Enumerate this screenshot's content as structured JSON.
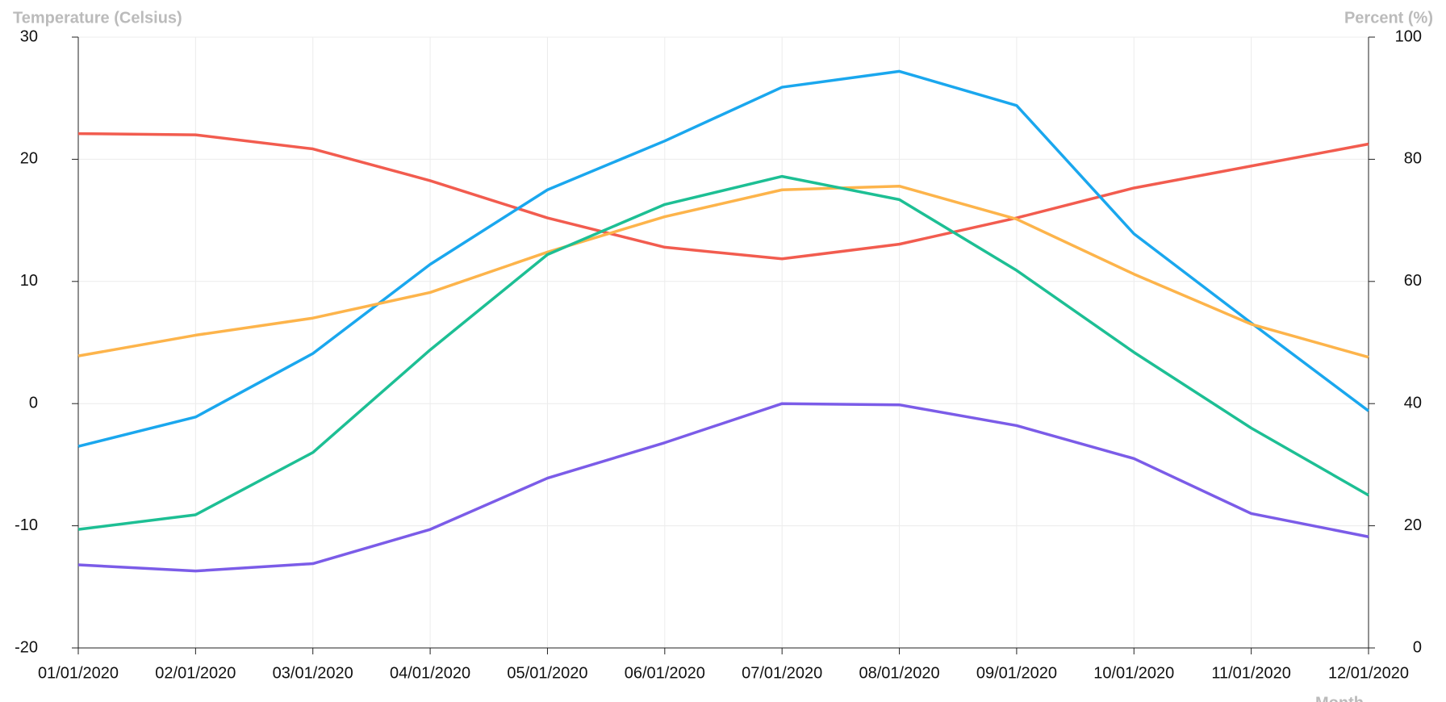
{
  "chart_data": {
    "type": "line",
    "y_label": "Temperature (Celsius)",
    "y2_label": "Percent (%)",
    "x_label": "Month",
    "categories": [
      "01/01/2020",
      "02/01/2020",
      "03/01/2020",
      "04/01/2020",
      "05/01/2020",
      "06/01/2020",
      "07/01/2020",
      "08/01/2020",
      "09/01/2020",
      "10/01/2020",
      "11/01/2020",
      "12/01/2020"
    ],
    "ylim": [
      -20,
      30
    ],
    "yticks": [
      -20,
      -10,
      0,
      10,
      20,
      30
    ],
    "y2lim": [
      0,
      100
    ],
    "y2ticks": [
      0,
      20,
      40,
      60,
      80,
      100
    ],
    "grid": true,
    "series": [
      {
        "color": "#f25c4f",
        "axis": "y2",
        "values": [
          84.2,
          84.0,
          81.7,
          76.5,
          70.4,
          65.6,
          63.7,
          66.1,
          70.4,
          75.3,
          78.9,
          82.5
        ]
      },
      {
        "color": "#1aa7ee",
        "values": [
          -3.5,
          -1.1,
          4.1,
          11.4,
          17.5,
          21.5,
          25.9,
          27.2,
          24.4,
          13.9,
          6.6,
          -0.6
        ]
      },
      {
        "color": "#fdb44b",
        "values": [
          3.9,
          5.6,
          7.0,
          9.1,
          12.4,
          15.3,
          17.5,
          17.8,
          15.1,
          10.6,
          6.5,
          3.8
        ]
      },
      {
        "color": "#1dbf94",
        "values": [
          -10.3,
          -9.1,
          -4.0,
          4.4,
          12.2,
          16.3,
          18.6,
          16.7,
          10.9,
          4.2,
          -2.0,
          -7.5
        ]
      },
      {
        "color": "#7b5ce8",
        "values": [
          -13.2,
          -13.7,
          -13.1,
          -10.3,
          -6.1,
          -3.2,
          0.0,
          -0.1,
          -1.8,
          -4.5,
          -9.0,
          -10.9
        ]
      }
    ]
  }
}
